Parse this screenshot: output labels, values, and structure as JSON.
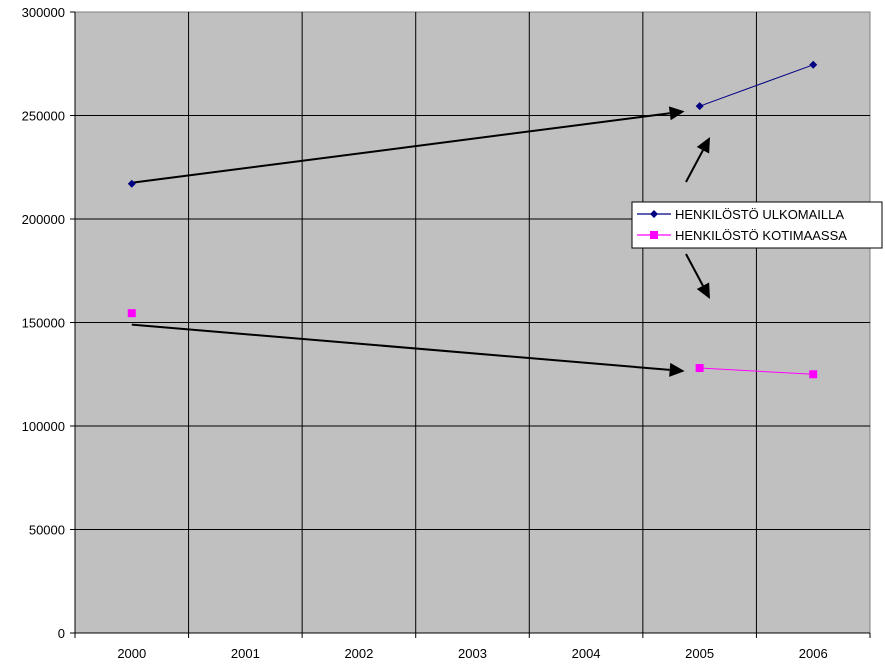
{
  "chart_data": {
    "type": "line",
    "categories": [
      "2000",
      "2001",
      "2002",
      "2003",
      "2004",
      "2005",
      "2006"
    ],
    "series": [
      {
        "name": "HENKILÖSTÖ ULKOMAILLA",
        "values": [
          217000,
          null,
          null,
          null,
          null,
          254500,
          274500
        ],
        "color": "#000080",
        "marker": "diamond"
      },
      {
        "name": "HENKILÖSTÖ KOTIMAASSA",
        "values": [
          154500,
          null,
          null,
          null,
          null,
          128000,
          125000
        ],
        "color": "#ff00ff",
        "marker": "square"
      }
    ],
    "yticks": [
      "0",
      "50000",
      "100000",
      "150000",
      "200000",
      "250000",
      "300000"
    ],
    "ylim": [
      0,
      300000
    ],
    "title": "",
    "xlabel": "",
    "ylabel": "",
    "grid": true,
    "plot_background": "#c0c0c0",
    "legend_position": "right",
    "annotations": [
      {
        "type": "arrow",
        "from": [
          "2000",
          217500
        ],
        "to": [
          "2005",
          252000
        ]
      },
      {
        "type": "arrow",
        "from": [
          "2000",
          149000
        ],
        "to": [
          "2005",
          126500
        ]
      }
    ]
  }
}
